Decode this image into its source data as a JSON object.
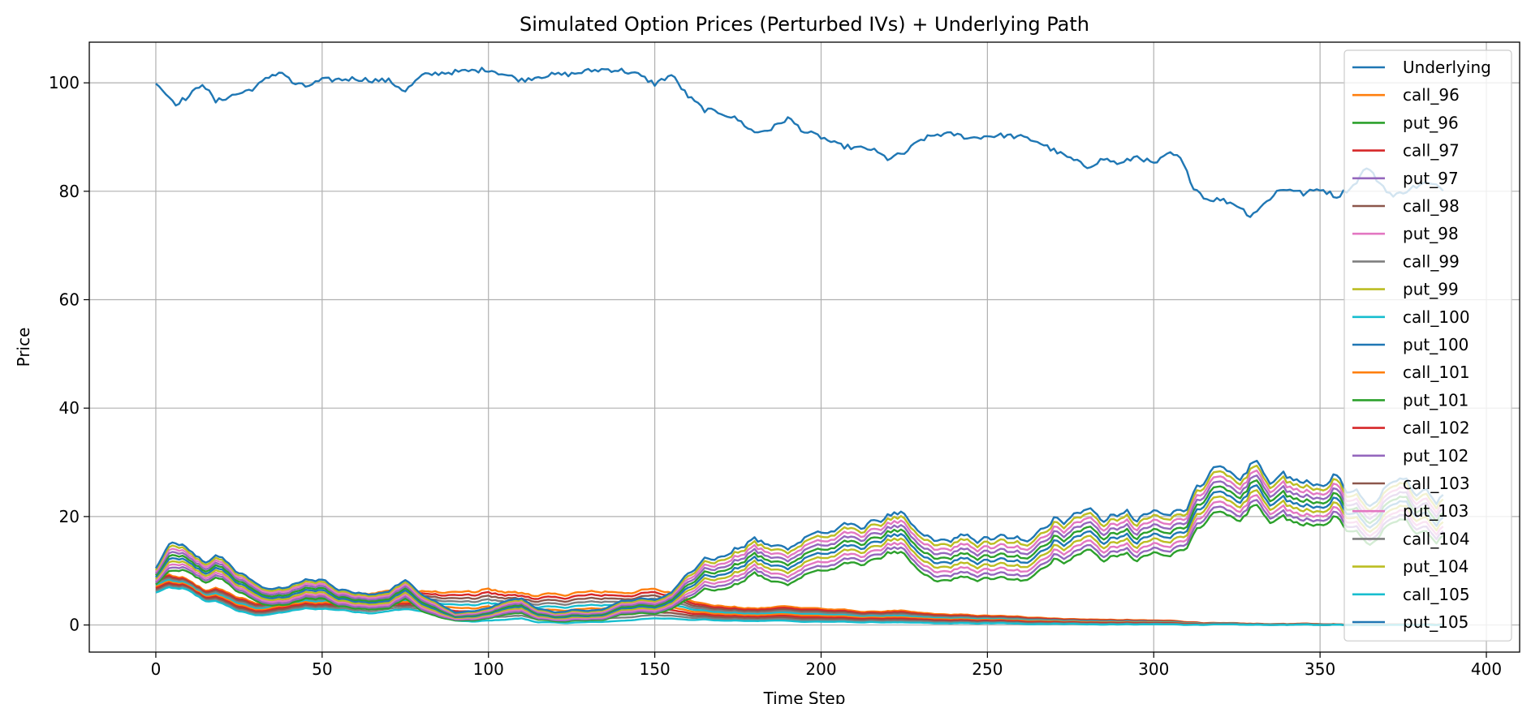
{
  "chart_data": {
    "type": "line",
    "title": "Simulated Option Prices (Perturbed IVs) + Underlying Path",
    "xlabel": "Time Step",
    "ylabel": "Price",
    "xlim": [
      -20,
      410
    ],
    "ylim": [
      -5,
      107.5
    ],
    "xticks": [
      0,
      50,
      100,
      150,
      200,
      250,
      300,
      350,
      400
    ],
    "yticks": [
      0,
      20,
      40,
      60,
      80,
      100
    ],
    "grid": true,
    "legend": "upper right",
    "n_steps": 388,
    "underlying_path": {
      "x": [
        0,
        3,
        6,
        10,
        14,
        18,
        22,
        26,
        30,
        35,
        38,
        41,
        45,
        50,
        55,
        60,
        65,
        70,
        75,
        80,
        85,
        90,
        95,
        100,
        105,
        110,
        115,
        120,
        125,
        130,
        135,
        140,
        145,
        150,
        155,
        160,
        165,
        170,
        175,
        180,
        185,
        190,
        195,
        200,
        205,
        210,
        215,
        220,
        225,
        230,
        235,
        240,
        245,
        250,
        255,
        260,
        265,
        270,
        275,
        280,
        285,
        290,
        295,
        300,
        305,
        308,
        312,
        316,
        320,
        325,
        329,
        333,
        337,
        341,
        345,
        350,
        355,
        360,
        364,
        368,
        372,
        377,
        382,
        387
      ],
      "y": [
        100.3,
        98,
        96.2,
        97.5,
        100,
        96.5,
        97.5,
        98.2,
        99.2,
        101.5,
        102,
        100,
        99.3,
        100.5,
        100.6,
        100.8,
        100.5,
        100.4,
        98.5,
        101.3,
        101.8,
        102,
        102.2,
        102.5,
        101.5,
        100.5,
        101.2,
        101.5,
        101.6,
        102.2,
        102.5,
        102.3,
        101.5,
        99.8,
        101.5,
        97.5,
        95,
        94.5,
        93.2,
        90.8,
        91.5,
        93.5,
        91,
        90,
        88.5,
        88,
        87.8,
        86,
        87,
        89.5,
        90.5,
        90.5,
        89.8,
        90.2,
        90.3,
        90,
        89.2,
        87.5,
        86,
        84.5,
        86,
        85,
        86.5,
        85,
        87,
        86,
        80.8,
        78.5,
        78.5,
        77.5,
        75.5,
        77.5,
        80,
        80.5,
        79.5,
        80.5,
        79,
        81,
        84.5,
        81.5,
        79,
        80.5,
        81.5,
        80.5
      ]
    },
    "option_envelopes": {
      "x": [
        0,
        5,
        10,
        15,
        20,
        25,
        30,
        35,
        40,
        45,
        50,
        55,
        60,
        65,
        70,
        75,
        80,
        85,
        90,
        95,
        100,
        105,
        110,
        115,
        120,
        125,
        130,
        135,
        140,
        145,
        150,
        155,
        160,
        165,
        170,
        175,
        180,
        185,
        190,
        195,
        200,
        205,
        210,
        215,
        220,
        225,
        230,
        235,
        240,
        245,
        250,
        255,
        260,
        265,
        270,
        275,
        280,
        285,
        290,
        295,
        300,
        305,
        310,
        315,
        320,
        325,
        330,
        335,
        340,
        345,
        350,
        355,
        360,
        365,
        370,
        375,
        380,
        385,
        387
      ],
      "put_105": [
        10.5,
        15.2,
        13.5,
        11.8,
        12.5,
        9.5,
        7.8,
        6.5,
        7,
        8.2,
        8.5,
        6.5,
        6.2,
        5.8,
        6,
        8.5,
        5.5,
        4,
        2.2,
        2.5,
        3,
        4.5,
        4.8,
        3,
        2.2,
        2.8,
        2.5,
        3,
        4.5,
        4.8,
        4.5,
        6,
        10,
        12,
        12.5,
        14,
        15.8,
        14.5,
        14.2,
        16.5,
        17,
        17.5,
        18.5,
        18.5,
        20.5,
        19.5,
        16.5,
        15.5,
        15.8,
        16,
        15.8,
        16,
        15.5,
        17.5,
        19.5,
        19.8,
        21.5,
        19.5,
        20.5,
        19.5,
        20.5,
        20,
        22.5,
        27.5,
        28,
        26,
        30,
        27,
        28,
        25,
        26.5,
        27,
        25,
        23,
        26,
        27,
        25,
        23,
        24
      ],
      "put_96": [
        7.5,
        10,
        9.5,
        8,
        8.5,
        6,
        4.5,
        3.5,
        3.8,
        4.8,
        5,
        3.5,
        3.2,
        3,
        3,
        5,
        2.5,
        1.5,
        0.8,
        0.8,
        1.2,
        2,
        2.2,
        1,
        0.6,
        0.8,
        0.8,
        1,
        2,
        2.2,
        2,
        3,
        5,
        6.5,
        6.5,
        7.5,
        9.5,
        8,
        7.5,
        9.5,
        10,
        10.5,
        11.5,
        11.5,
        13.5,
        12.5,
        9.5,
        8,
        8.5,
        8.5,
        8.5,
        8.5,
        8,
        10,
        12,
        12,
        14,
        12,
        13,
        12,
        13,
        12.5,
        15,
        19.5,
        20,
        18.5,
        22,
        19.5,
        20,
        17.5,
        19,
        19.5,
        17.5,
        15.5,
        18.5,
        19.5,
        17.5,
        15.5,
        16.5
      ],
      "call_96": [
        8.5,
        9,
        8,
        6.5,
        6.5,
        5,
        4,
        4.5,
        5,
        5.5,
        5.5,
        5.8,
        6,
        6,
        6.2,
        6,
        6.2,
        6,
        6,
        6,
        6.5,
        6.2,
        5.8,
        5.5,
        5.5,
        5.8,
        6,
        6.2,
        6,
        6.2,
        6.5,
        6,
        5,
        3.8,
        3.5,
        3.2,
        3,
        3.2,
        3.5,
        3.2,
        3,
        2.8,
        2.6,
        2.4,
        2.6,
        2.5,
        2.2,
        2,
        1.9,
        1.8,
        1.7,
        1.6,
        1.5,
        1.4,
        1.2,
        1.1,
        1,
        1,
        0.9,
        0.9,
        0.8,
        0.8,
        0.6,
        0.4,
        0.3,
        0.3,
        0.2,
        0.2,
        0.2,
        0.2,
        0.2,
        0.1,
        0.1,
        0.1,
        0.1,
        0.1,
        0.1,
        0.1,
        0.1
      ],
      "call_105": [
        6,
        6.8,
        6.2,
        4.5,
        4,
        2.5,
        1.8,
        2,
        2.5,
        3,
        3,
        2.8,
        2.5,
        2.2,
        2.5,
        3,
        2.5,
        1.5,
        0.8,
        0.6,
        0.8,
        1,
        1.2,
        0.5,
        0.4,
        0.4,
        0.5,
        0.6,
        0.8,
        1,
        1.2,
        1.2,
        1,
        1,
        0.8,
        0.8,
        0.7,
        0.8,
        0.8,
        0.6,
        0.6,
        0.6,
        0.5,
        0.5,
        0.5,
        0.4,
        0.4,
        0.3,
        0.3,
        0.3,
        0.3,
        0.3,
        0.2,
        0.2,
        0.2,
        0.2,
        0.1,
        0.1,
        0.1,
        0.1,
        0.1,
        0.1,
        0.05,
        0.05,
        0.05,
        0.05,
        0.02,
        0.02,
        0.02,
        0.02,
        0.02,
        0.02,
        0.02,
        0.02,
        0.02,
        0.02,
        0.02,
        0.02,
        0.02
      ]
    },
    "series": [
      {
        "name": "Underlying",
        "color": "#1f77b4"
      },
      {
        "name": "call_96",
        "color": "#ff7f0e"
      },
      {
        "name": "put_96",
        "color": "#2ca02c"
      },
      {
        "name": "call_97",
        "color": "#d62728"
      },
      {
        "name": "put_97",
        "color": "#9467bd"
      },
      {
        "name": "call_98",
        "color": "#8c564b"
      },
      {
        "name": "put_98",
        "color": "#e377c2"
      },
      {
        "name": "call_99",
        "color": "#7f7f7f"
      },
      {
        "name": "put_99",
        "color": "#bcbd22"
      },
      {
        "name": "call_100",
        "color": "#17becf"
      },
      {
        "name": "put_100",
        "color": "#1f77b4"
      },
      {
        "name": "call_101",
        "color": "#ff7f0e"
      },
      {
        "name": "put_101",
        "color": "#2ca02c"
      },
      {
        "name": "call_102",
        "color": "#d62728"
      },
      {
        "name": "put_102",
        "color": "#9467bd"
      },
      {
        "name": "call_103",
        "color": "#8c564b"
      },
      {
        "name": "put_103",
        "color": "#e377c2"
      },
      {
        "name": "call_104",
        "color": "#7f7f7f"
      },
      {
        "name": "put_104",
        "color": "#bcbd22"
      },
      {
        "name": "call_105",
        "color": "#17becf"
      },
      {
        "name": "put_105",
        "color": "#1f77b4"
      }
    ]
  }
}
